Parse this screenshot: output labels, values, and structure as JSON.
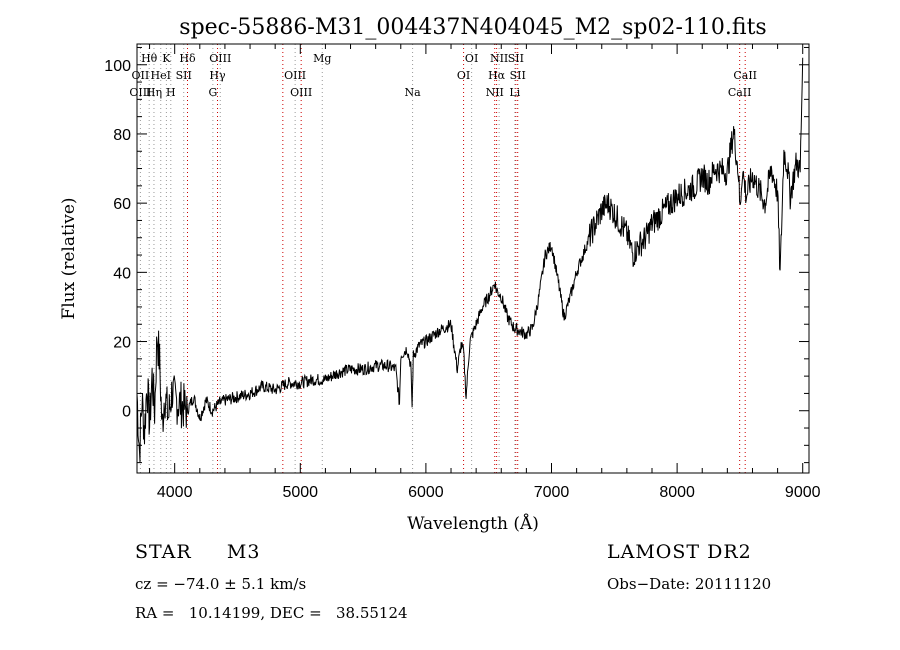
{
  "chart_data": {
    "type": "line",
    "title": "spec-55886-M31_004437N404045_M2_sp02-110.fits",
    "xlabel": "Wavelength (Å)",
    "ylabel": "Flux (relative)",
    "xlim": [
      3700,
      9050
    ],
    "ylim": [
      -18,
      106
    ],
    "x_ticks": [
      4000,
      5000,
      6000,
      7000,
      8000,
      9000
    ],
    "y_ticks": [
      0,
      20,
      40,
      60,
      80,
      100
    ],
    "grid": false,
    "series": [
      {
        "x": [
          3700,
          3720,
          3740,
          3760,
          3780,
          3800,
          3820,
          3840,
          3860,
          3880,
          3900,
          3920,
          3950,
          3980,
          4000,
          4050,
          4100,
          4150,
          4200,
          4250,
          4300,
          4350,
          4400,
          4500,
          4600,
          4700,
          4800,
          4900,
          5000,
          5100,
          5200,
          5300,
          5400,
          5500,
          5600,
          5700,
          5760,
          5790,
          5800,
          5850,
          5880,
          5890,
          5900,
          5950,
          6000,
          6100,
          6200,
          6250,
          6280,
          6300,
          6320,
          6350,
          6400,
          6450,
          6500,
          6550,
          6560,
          6600,
          6650,
          6700,
          6750,
          6800,
          6850,
          6900,
          6950,
          7000,
          7050,
          7100,
          7150,
          7200,
          7300,
          7400,
          7450,
          7500,
          7600,
          7650,
          7700,
          7750,
          7800,
          7900,
          8000,
          8100,
          8150,
          8200,
          8250,
          8300,
          8400,
          8450,
          8490,
          8500,
          8520,
          8550,
          8600,
          8650,
          8700,
          8750,
          8800,
          8820,
          8850,
          8880,
          8900,
          8950,
          8980,
          9000
        ],
        "values": [
          5,
          -12,
          3,
          -6,
          8,
          -4,
          10,
          0,
          22,
          14,
          -5,
          5,
          -2,
          6,
          3,
          2,
          0,
          4,
          -2,
          3,
          0,
          2,
          3,
          4,
          5,
          7,
          6,
          8,
          8,
          9,
          9,
          11,
          12,
          12,
          13,
          13,
          12,
          2,
          16,
          18,
          13,
          1,
          16,
          19,
          20,
          23,
          25,
          12,
          19,
          17,
          4,
          20,
          25,
          30,
          33,
          37,
          35,
          33,
          27,
          24,
          23,
          22,
          24,
          33,
          45,
          48,
          38,
          27,
          33,
          40,
          50,
          58,
          60,
          57,
          51,
          45,
          48,
          50,
          54,
          58,
          62,
          64,
          65,
          68,
          66,
          70,
          69,
          81,
          68,
          58,
          70,
          62,
          68,
          64,
          60,
          70,
          63,
          39,
          75,
          70,
          62,
          72,
          69,
          102
        ]
      }
    ],
    "line_labels": [
      {
        "name": "Hθ",
        "x": 3797,
        "row": 0
      },
      {
        "name": "OII",
        "x": 3727,
        "row": 1
      },
      {
        "name": "OIII",
        "x": 3727,
        "row": 2
      },
      {
        "name": "K",
        "x": 3934,
        "row": 0
      },
      {
        "name": "HeI",
        "x": 3889,
        "row": 1
      },
      {
        "name": "Hη",
        "x": 3835,
        "row": 2
      },
      {
        "name": "H",
        "x": 3969,
        "row": 2
      },
      {
        "name": "SII",
        "x": 4072,
        "row": 1
      },
      {
        "name": "Hδ",
        "x": 4102,
        "row": 0
      },
      {
        "name": "OIII",
        "x": 4363,
        "row": 0
      },
      {
        "name": "Hγ",
        "x": 4341,
        "row": 1
      },
      {
        "name": "G",
        "x": 4304,
        "row": 2
      },
      {
        "name": "OIII",
        "x": 4959,
        "row": 1
      },
      {
        "name": "OIII",
        "x": 5007,
        "row": 2
      },
      {
        "name": "Mg",
        "x": 5175,
        "row": 0
      },
      {
        "name": "Na",
        "x": 5894,
        "row": 2
      },
      {
        "name": "OI",
        "x": 6364,
        "row": 0
      },
      {
        "name": "OI",
        "x": 6300,
        "row": 1
      },
      {
        "name": "NII",
        "x": 6583,
        "row": 0
      },
      {
        "name": "SII",
        "x": 6716,
        "row": 0
      },
      {
        "name": "Hα",
        "x": 6563,
        "row": 1
      },
      {
        "name": "SII",
        "x": 6731,
        "row": 1
      },
      {
        "name": "NII",
        "x": 6548,
        "row": 2
      },
      {
        "name": "Li",
        "x": 6708,
        "row": 2
      },
      {
        "name": "CaII",
        "x": 8542,
        "row": 1
      },
      {
        "name": "CaII",
        "x": 8498,
        "row": 2
      }
    ],
    "red_lines": [
      4102,
      4341,
      4861,
      5007,
      6300,
      6548,
      6563,
      6716,
      6731,
      8498,
      8542
    ],
    "grey_lines": [
      3727,
      3797,
      3835,
      3889,
      3934,
      3969,
      4072,
      4304,
      4363,
      4959,
      5175,
      5894,
      6364,
      6583,
      6708
    ]
  },
  "object_class": "STAR     M3",
  "redshift": "cz = −74.0 ± 5.1 km/s",
  "coordinates": "RA =   10.14199, DEC =   38.55124",
  "survey": "LAMOST DR2",
  "obs_date": "Obs−Date: 20111120",
  "colors": {
    "line": "#000000",
    "red_marker": "#cc0000",
    "grey_marker": "#9a9a9a"
  }
}
